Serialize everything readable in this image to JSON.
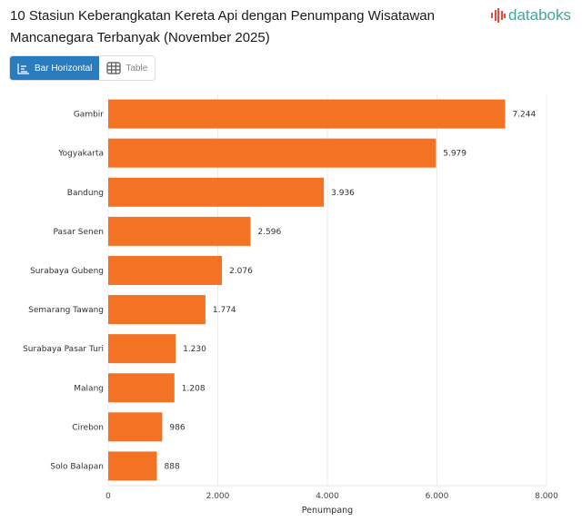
{
  "header": {
    "title": "10 Stasiun Keberangkatan Kereta Api dengan Penumpang Wisatawan Mancanegara Terbanyak (November 2025)",
    "logo": "databoks"
  },
  "tabs": [
    {
      "label": "Bar Horizontal",
      "icon": "bar-chart-icon",
      "active": true
    },
    {
      "label": "Table",
      "icon": "table-icon",
      "active": false
    }
  ],
  "colors": {
    "bar": "#f37224",
    "accent": "#2b7bbf",
    "logo_text": "#3aa8a0",
    "logo_mark": "#e8493a"
  },
  "chart_data": {
    "type": "bar",
    "orientation": "horizontal",
    "categories": [
      "Gambir",
      "Yogyakarta",
      "Bandung",
      "Pasar Senen",
      "Surabaya Gubeng",
      "Semarang Tawang",
      "Surabaya Pasar Turi",
      "Malang",
      "Cirebon",
      "Solo Balapan"
    ],
    "values": [
      7244,
      5979,
      3936,
      2596,
      2076,
      1774,
      1230,
      1208,
      986,
      888
    ],
    "data_labels": [
      "7.244",
      "5.979",
      "3.936",
      "2.596",
      "2.076",
      "1.774",
      "1.230",
      "1.208",
      "986",
      "888"
    ],
    "xlabel": "Penumpang",
    "ylabel": "",
    "xlim": [
      0,
      8000
    ],
    "x_ticks": [
      0,
      2000,
      4000,
      6000,
      8000
    ],
    "x_tick_labels": [
      "0",
      "2.000",
      "4.000",
      "6.000",
      "8.000"
    ],
    "grid": true
  }
}
